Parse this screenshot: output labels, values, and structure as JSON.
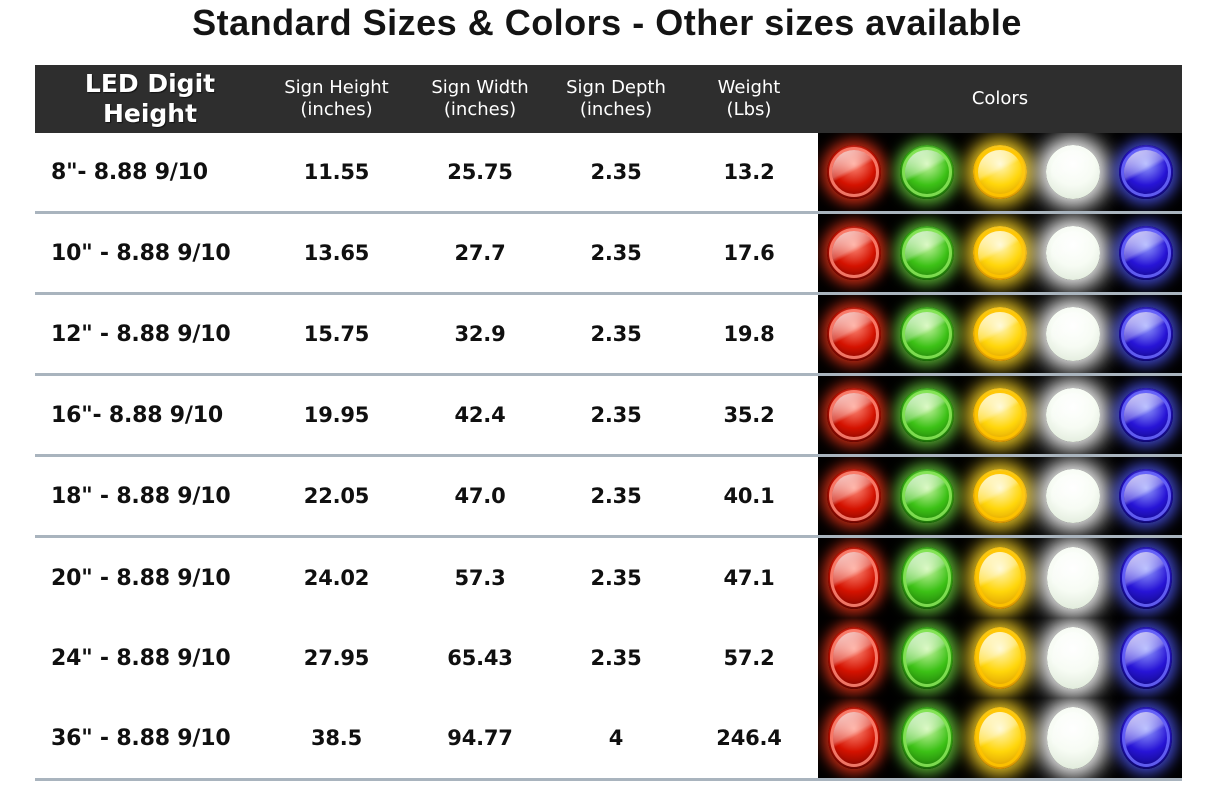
{
  "page": {
    "title": "Standard Sizes & Colors - Other sizes available"
  },
  "theme": {
    "header_bg": "#2e2e2e",
    "header_text": "#ffffff",
    "divider": "#a9b4be",
    "panel_bg": "#000000",
    "text": "#101010",
    "page_bg": "#ffffff"
  },
  "table": {
    "headers": {
      "col1": {
        "line1": "LED Digit",
        "line2": "Height"
      },
      "col2": {
        "line1": "Sign Height",
        "line2": "(inches)"
      },
      "col3": {
        "line1": "Sign Width",
        "line2": "(inches)"
      },
      "col4": {
        "line1": "Sign Depth",
        "line2": "(inches)"
      },
      "col5": {
        "line1": "Weight",
        "line2": "(Lbs)"
      },
      "col6": {
        "line1": "Colors",
        "line2": ""
      }
    },
    "rows": [
      {
        "label": "8\"- 8.88 9/10",
        "sign_height": "11.55",
        "sign_width": "25.75",
        "sign_depth": "2.35",
        "weight": "13.2"
      },
      {
        "label": "10\" - 8.88 9/10",
        "sign_height": "13.65",
        "sign_width": "27.7",
        "sign_depth": "2.35",
        "weight": "17.6"
      },
      {
        "label": "12\" - 8.88 9/10",
        "sign_height": "15.75",
        "sign_width": "32.9",
        "sign_depth": "2.35",
        "weight": "19.8"
      },
      {
        "label": "16\"- 8.88 9/10",
        "sign_height": "19.95",
        "sign_width": "42.4",
        "sign_depth": "2.35",
        "weight": "35.2"
      },
      {
        "label": "18\" - 8.88 9/10",
        "sign_height": "22.05",
        "sign_width": "47.0",
        "sign_depth": "2.35",
        "weight": "40.1"
      },
      {
        "label": "20\" - 8.88 9/10",
        "sign_height": "24.02",
        "sign_width": "57.3",
        "sign_depth": "2.35",
        "weight": "47.1"
      },
      {
        "label": "24\" - 8.88 9/10",
        "sign_height": "27.95",
        "sign_width": "65.43",
        "sign_depth": "2.35",
        "weight": "57.2"
      },
      {
        "label": "36\" - 8.88 9/10",
        "sign_height": "38.5",
        "sign_width": "94.77",
        "sign_depth": "4",
        "weight": "246.4"
      }
    ],
    "led_colors": [
      {
        "name": "red",
        "main": "#d41200",
        "light": "#ff8f7d",
        "dark": "#550200",
        "ring": "#ff8877",
        "glow": "rgba(255,55,25,0.80)"
      },
      {
        "name": "green",
        "main": "#3cc116",
        "light": "#c9f6a6",
        "dark": "#135c03",
        "ring": "#8ce95c",
        "glow": "rgba(120,235,70,0.75)"
      },
      {
        "name": "yellow",
        "main": "#ffd60a",
        "light": "#fff7c4",
        "dark": "#cc8400",
        "ring": "#ffc400",
        "glow": "rgba(255,216,40,0.90)"
      },
      {
        "name": "white",
        "main": "#f7fcf4",
        "light": "#ffffff",
        "dark": "#d8e4d2",
        "ring": "#ffffff",
        "glow": "rgba(255,255,255,0.95)"
      },
      {
        "name": "blue",
        "main": "#2714d6",
        "light": "#97a0ff",
        "dark": "#07035e",
        "ring": "#6c6afe",
        "glow": "rgba(80,90,255,0.80)"
      }
    ]
  }
}
